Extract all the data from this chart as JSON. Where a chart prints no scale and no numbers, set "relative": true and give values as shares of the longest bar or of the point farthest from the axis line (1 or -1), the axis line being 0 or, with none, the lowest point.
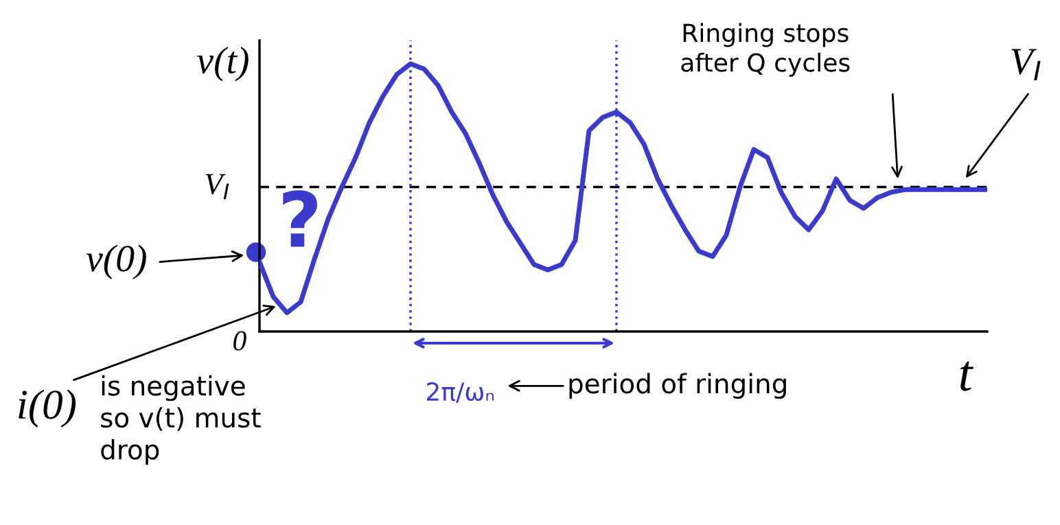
{
  "chart_data": {
    "type": "line",
    "xlabel": "t",
    "ylabel": "v(t)",
    "relative": true,
    "categories": [
      null,
      null,
      null,
      null,
      null,
      null,
      null,
      null,
      null,
      null,
      null,
      null,
      null,
      null,
      null,
      null,
      null,
      null,
      null,
      null,
      null,
      null,
      null,
      null,
      null,
      null,
      null,
      null,
      null,
      null,
      null,
      null,
      null,
      null,
      null,
      null,
      null,
      null,
      null,
      null,
      null,
      null,
      null,
      null,
      null,
      null,
      null,
      null,
      null,
      null,
      null,
      null,
      null,
      null
    ],
    "series": [
      {
        "color": "#3a3acc",
        "values": [
          0.26,
          0.13,
          0.07,
          0.11,
          0.27,
          0.42,
          0.54,
          0.65,
          0.78,
          0.88,
          0.96,
          1,
          0.98,
          0.92,
          0.82,
          0.74,
          0.63,
          0.51,
          0.41,
          0.33,
          0.25,
          0.23,
          0.25,
          0.34,
          0.75,
          0.8,
          0.82,
          0.78,
          0.7,
          0.57,
          0.47,
          0.38,
          0.3,
          0.28,
          0.36,
          0.54,
          0.68,
          0.65,
          0.52,
          0.43,
          0.38,
          0.45,
          0.57,
          0.49,
          0.46,
          0.5,
          0.52,
          0.53,
          0.53,
          0.53,
          0.53,
          0.53,
          0.53,
          0.53
        ]
      }
    ],
    "ref_lines": [
      {
        "axis": "y",
        "value": 0.54,
        "label": "V$_{I}$",
        "color": "#000000",
        "line_style": "dashed"
      }
    ],
    "annotations": [
      "Ringing stops\nafter Q cycles",
      "V$_{I}$",
      "v(0)",
      "i(0)",
      "0",
      "is negative\nso v(t) must\ndrop",
      "?",
      "2π/ωₙ",
      "period of ringing"
    ]
  }
}
